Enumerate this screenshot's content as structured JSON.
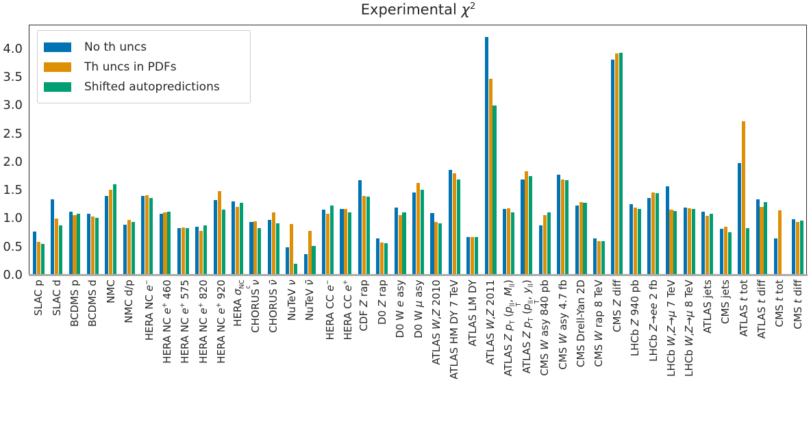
{
  "chart_data": {
    "type": "bar",
    "title": "Experimental χ²",
    "title_html": "Experimental <i>χ</i><sup>2</sup>",
    "xlabel": "",
    "ylabel": "",
    "grid": false,
    "legend_position": "upper left",
    "y_axis": {
      "ylim": [
        0,
        4.42
      ],
      "tick_step": 0.5,
      "ticks": [
        "0.0",
        "0.5",
        "1.0",
        "1.5",
        "2.0",
        "2.5",
        "3.0",
        "3.5",
        "4.0"
      ]
    },
    "categories": [
      "SLAC p",
      "SLAC d",
      "BCDMS p",
      "BCDMS d",
      "NMC",
      "NMC d/p",
      "HERA NC <i>e</i><sup>−</sup>",
      "HERA NC <i>e</i><sup>+</sup> 460",
      "HERA NC <i>e</i><sup>+</sup> 575",
      "HERA NC <i>e</i><sup>+</sup> 820",
      "HERA NC <i>e</i><sup>+</sup> 920",
      "HERA <i>σ</i><span class='supsub'><sup>NC</sup><sub>c</sub></span>",
      "CHORUS <i>ν</i>",
      "CHORUS <i>ν̄</i>",
      "NuTeV <i>ν</i>",
      "NuTeV <i>ν̄</i>",
      "HERA CC <i>e</i><sup>−</sup>",
      "HERA CC <i>e</i><sup>+</sup>",
      "CDF <i>Z</i> rap",
      "D0 <i>Z</i> rap",
      "D0 W <i>e</i> asy",
      "D0 W <i>μ</i> asy",
      "ATLAS <i>W</i>,<i>Z</i> 2010",
      "ATLAS HM DY 7 TeV",
      "ATLAS LM DY",
      "ATLAS <i>W</i>,<i>Z</i> 2011",
      "ATLAS <i>Z</i> <i>p</i><sub>T</sub> (<i>p</i><span class='supsub'><sup>ll</sup><sub>T</sub></span>, <i>M</i><sub>ll</sub>)",
      "ATLAS <i>Z</i> <i>p</i><sub>T</sub> (<i>p</i><span class='supsub'><sup>ll</sup><sub>T</sub></span>, <i>y</i><sub>ll</sub>)",
      "CMS <i>W</i> asy 840 pb",
      "CMS <i>W</i> asy 4.7 fb",
      "CMS Drell-Yan 2D",
      "CMS <i>W</i> rap 8 TeV",
      "CMS <i>Z</i> diff",
      "LHCb <i>Z</i> 940 pb",
      "LHCb <i>Z</i>→<i>ee</i> 2 fb",
      "LHCb <i>W</i>,<i>Z</i>→<i>μ</i> 7 TeV",
      "LHCb <i>W</i>,<i>Z</i>→<i>μ</i> 8 TeV",
      "ATLAS jets",
      "CMS jets",
      "ATLAS <i>t</i> tot",
      "ATLAS <i>t</i> diff",
      "CMS <i>t</i> tot",
      "CMS <i>t</i> diff"
    ],
    "series": [
      {
        "name": "No th uncs",
        "color": "#0173b2",
        "values": [
          0.78,
          1.34,
          1.13,
          1.09,
          1.41,
          0.9,
          1.4,
          1.09,
          0.84,
          0.86,
          1.33,
          1.31,
          0.94,
          0.98,
          0.5,
          0.38,
          1.16,
          1.17,
          1.68,
          0.65,
          1.2,
          1.46,
          1.1,
          1.86,
          0.68,
          4.21,
          1.17,
          1.69,
          0.88,
          1.78,
          1.24,
          0.65,
          3.82,
          1.26,
          1.37,
          1.58,
          1.2,
          1.13,
          0.82,
          1.98,
          1.34,
          0.65,
          0.99
        ]
      },
      {
        "name": "Th uncs in PDFs",
        "color": "#de8f05",
        "values": [
          0.59,
          1.01,
          1.06,
          1.04,
          1.51,
          0.98,
          1.42,
          1.11,
          0.85,
          0.79,
          1.49,
          1.21,
          0.96,
          1.12,
          0.91,
          0.79,
          1.09,
          1.18,
          1.41,
          0.58,
          1.07,
          1.64,
          0.95,
          1.81,
          0.68,
          3.48,
          1.19,
          1.84,
          1.07,
          1.7,
          1.3,
          0.6,
          3.92,
          1.2,
          1.46,
          1.16,
          1.19,
          1.05,
          0.86,
          2.72,
          1.21,
          1.15,
          0.95
        ]
      },
      {
        "name": "Shifted autopredictions",
        "color": "#029e73",
        "values": [
          0.56,
          0.88,
          1.09,
          1.02,
          1.61,
          0.95,
          1.37,
          1.13,
          0.83,
          0.89,
          1.16,
          1.28,
          0.84,
          0.92,
          0.21,
          0.52,
          1.23,
          1.12,
          1.39,
          0.57,
          1.12,
          1.51,
          0.92,
          1.69,
          0.68,
          3.0,
          1.12,
          1.75,
          1.11,
          1.68,
          1.28,
          0.6,
          3.94,
          1.17,
          1.45,
          1.14,
          1.18,
          1.09,
          0.76,
          0.84,
          1.29,
          0.03,
          0.97
        ]
      }
    ]
  }
}
